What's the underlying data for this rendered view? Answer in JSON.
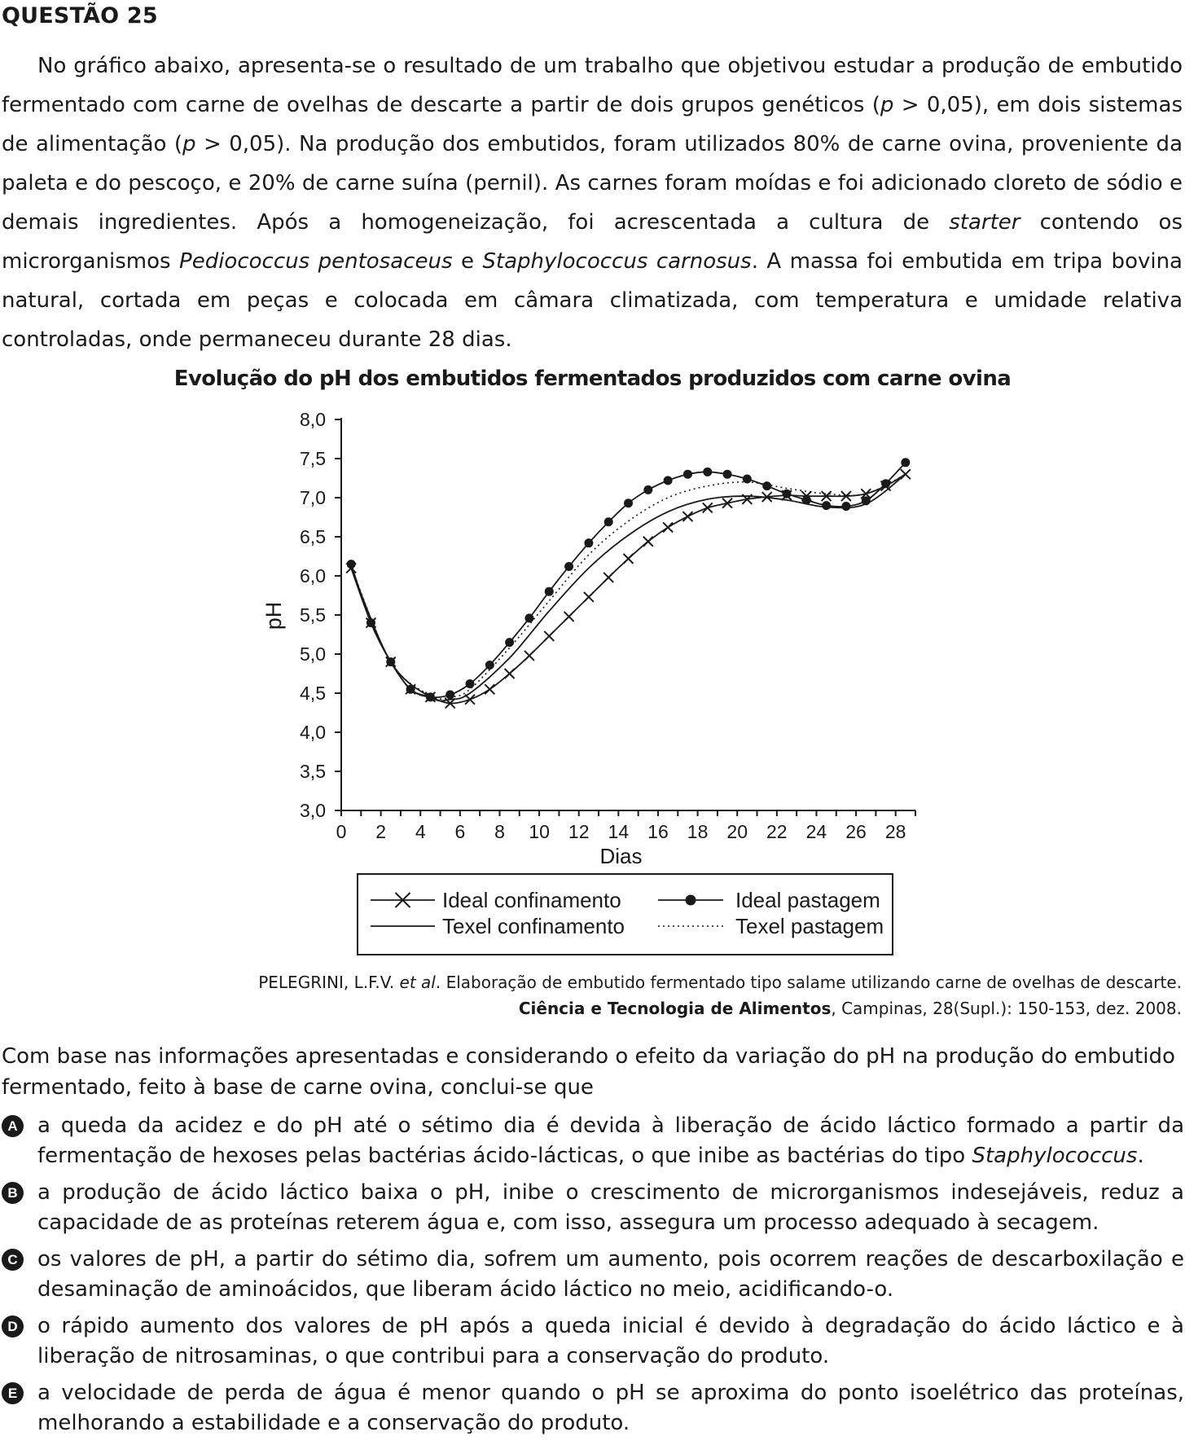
{
  "question": {
    "title": "QUESTÃO 25",
    "intro": [
      {
        "t": "No gráfico abaixo, apresenta-se o resultado de um trabalho que objetivou estudar a produção de embutido fermentado com carne de ovelhas de descarte a partir de dois grupos genéticos ("
      },
      {
        "t": "p",
        "i": true
      },
      {
        "t": " > 0,05), em dois sistemas de alimentação ("
      },
      {
        "t": "p",
        "i": true
      },
      {
        "t": " > 0,05). Na produção dos embutidos, foram utilizados 80% de carne ovina, proveniente da paleta e do pescoço, e 20% de carne suína (pernil). As carnes foram moídas e foi adicionado cloreto de sódio e demais ingredientes. Após a homogeneização, foi acrescentada a cultura de "
      },
      {
        "t": "starter",
        "i": true
      },
      {
        "t": " contendo os microrganismos "
      },
      {
        "t": "Pediococcus pentosaceus",
        "i": true
      },
      {
        "t": " e "
      },
      {
        "t": "Staphylococcus carnosus",
        "i": true
      },
      {
        "t": ". A massa foi embutida em tripa bovina natural, cortada em peças e colocada em câmara climatizada, com temperatura e umidade relativa controladas, onde permaneceu durante 28 dias."
      }
    ],
    "chart_title": "Evolução do pH dos embutidos fermentados produzidos com carne ovina",
    "citation": {
      "line1": [
        {
          "t": "PELEGRINI, L.F.V. "
        },
        {
          "t": "et al",
          "i": true
        },
        {
          "t": ". Elaboração de embutido fermentado tipo salame utilizando carne de ovelhas de descarte."
        }
      ],
      "line2": [
        {
          "t": "Ciência e Tecnologia de Alimentos",
          "b": true
        },
        {
          "t": ", Campinas, 28(Supl.): 150-153, dez. 2008."
        }
      ]
    },
    "prompt": "Com base nas informações apresentadas e considerando o efeito da variação do pH na produção do embutido fermentado, feito à base de carne ovina, conclui-se que",
    "options": [
      {
        "letter": "A",
        "parts": [
          {
            "t": "a queda da acidez e do pH até o sétimo dia é devida à liberação de ácido láctico formado a partir da fermentação de hexoses pelas bactérias ácido-lácticas, o que inibe as bactérias do tipo "
          },
          {
            "t": "Staphylococcus",
            "i": true
          },
          {
            "t": "."
          }
        ]
      },
      {
        "letter": "B",
        "parts": [
          {
            "t": "a produção de ácido láctico baixa o pH, inibe o crescimento de microrganismos indesejáveis, reduz a capacidade de as proteínas reterem água e, com isso, assegura um processo adequado à secagem."
          }
        ]
      },
      {
        "letter": "C",
        "parts": [
          {
            "t": "os valores de pH, a partir do sétimo dia, sofrem um aumento, pois ocorrem reações de descarboxilação e desaminação de aminoácidos, que liberam ácido láctico no meio, acidificando-o."
          }
        ]
      },
      {
        "letter": "D",
        "parts": [
          {
            "t": "o rápido aumento dos valores de pH após a queda inicial é devido à degradação do ácido láctico e à liberação de nitrosaminas, o que contribui para a conservação do produto."
          }
        ]
      },
      {
        "letter": "E",
        "parts": [
          {
            "t": "a velocidade de perda de água é menor quando o pH se aproxima do ponto isoelétrico das proteínas, melhorando a estabilidade e a conservação do produto."
          }
        ]
      }
    ]
  },
  "chart_data": {
    "type": "line",
    "title": "Evolução do pH dos embutidos fermentados produzidos com carne ovina",
    "xlabel": "Dias",
    "ylabel": "pH",
    "xlim": [
      0,
      29
    ],
    "ylim": [
      3.0,
      8.0
    ],
    "x_ticks": [
      0,
      2,
      4,
      6,
      8,
      10,
      12,
      14,
      16,
      18,
      20,
      22,
      24,
      26,
      28
    ],
    "x_tick_labels": [
      "0",
      "2",
      "4",
      "6",
      "8",
      "10",
      "12",
      "14",
      "16",
      "18",
      "20",
      "22",
      "24",
      "26",
      "28"
    ],
    "y_ticks": [
      3.0,
      3.5,
      4.0,
      4.5,
      5.0,
      5.5,
      6.0,
      6.5,
      7.0,
      7.5,
      8.0
    ],
    "y_tick_labels": [
      "3,0",
      "3,5",
      "4,0",
      "4,5",
      "5,0",
      "5,5",
      "6,0",
      "6,5",
      "7,0",
      "7,5",
      "8,0"
    ],
    "legend": "bottom",
    "series": [
      {
        "name": "Ideal confinamento",
        "marker": "x",
        "line": "solid",
        "x": [
          0.5,
          1.5,
          2.5,
          3.5,
          4.5,
          5.5,
          6.5,
          7.5,
          8.5,
          9.5,
          10.5,
          11.5,
          12.5,
          13.5,
          14.5,
          15.5,
          16.5,
          17.5,
          18.5,
          19.5,
          20.5,
          21.5,
          22.5,
          23.5,
          24.5,
          25.5,
          26.5,
          27.5,
          28.5
        ],
        "y": [
          6.1,
          5.4,
          4.9,
          4.55,
          4.45,
          4.37,
          4.42,
          4.55,
          4.75,
          4.98,
          5.23,
          5.48,
          5.73,
          5.98,
          6.22,
          6.44,
          6.62,
          6.76,
          6.87,
          6.93,
          6.98,
          7.01,
          7.03,
          7.02,
          7.02,
          7.02,
          7.05,
          7.15,
          7.3
        ]
      },
      {
        "name": "Ideal pastagem",
        "marker": "dot",
        "line": "solid",
        "x": [
          0.5,
          1.5,
          2.5,
          3.5,
          4.5,
          5.5,
          6.5,
          7.5,
          8.5,
          9.5,
          10.5,
          11.5,
          12.5,
          13.5,
          14.5,
          15.5,
          16.5,
          17.5,
          18.5,
          19.5,
          20.5,
          21.5,
          22.5,
          23.5,
          24.5,
          25.5,
          26.5,
          27.5,
          28.5
        ],
        "y": [
          6.15,
          5.4,
          4.9,
          4.55,
          4.45,
          4.48,
          4.62,
          4.86,
          5.15,
          5.46,
          5.8,
          6.12,
          6.42,
          6.69,
          6.93,
          7.1,
          7.22,
          7.3,
          7.33,
          7.3,
          7.24,
          7.15,
          7.05,
          6.97,
          6.9,
          6.89,
          6.96,
          7.18,
          7.45
        ]
      },
      {
        "name": "Texel confinamento",
        "marker": "none",
        "line": "solid",
        "x": [
          0.5,
          2.5,
          4.5,
          5.5,
          6.5,
          8.5,
          10.5,
          12.5,
          14.5,
          16.5,
          18.5,
          20.5,
          22.5,
          24.5,
          26.5,
          28.5
        ],
        "y": [
          6.1,
          4.9,
          4.45,
          4.42,
          4.5,
          4.95,
          5.55,
          6.1,
          6.52,
          6.82,
          6.98,
          7.02,
          6.97,
          6.88,
          6.92,
          7.3
        ]
      },
      {
        "name": "Texel pastagem",
        "marker": "none",
        "line": "dotted",
        "x": [
          0.5,
          2.5,
          4.5,
          5.5,
          6.5,
          8.5,
          10.5,
          12.5,
          14.5,
          16.5,
          18.5,
          20.5,
          22.5,
          24.5,
          26.5,
          28.5
        ],
        "y": [
          6.12,
          4.9,
          4.47,
          4.45,
          4.55,
          5.08,
          5.68,
          6.27,
          6.7,
          7.0,
          7.15,
          7.2,
          7.12,
          7.05,
          7.05,
          7.3
        ]
      }
    ]
  }
}
